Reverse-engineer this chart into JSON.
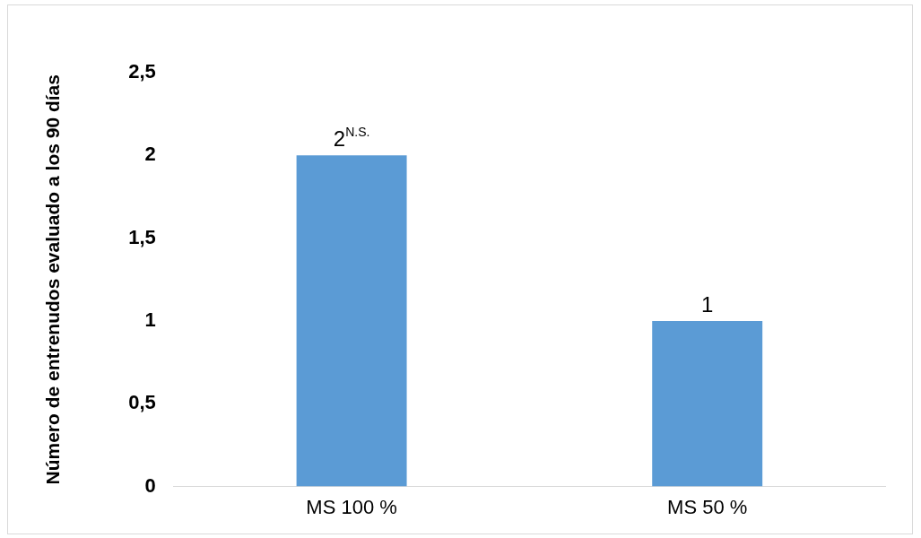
{
  "chart_data": {
    "type": "bar",
    "ylabel": "Número de entrenudos evaluado a los 90 días",
    "categories": [
      "MS 100 %",
      "MS 50 %"
    ],
    "values": [
      2,
      1
    ],
    "color": "#5b9bd5",
    "value_labels": [
      "2$^{N.S.}$",
      "1"
    ],
    "ylim": [
      0,
      2.5
    ],
    "yticks": [
      0,
      {
        "value": 0.5,
        "label": "0,5"
      },
      1,
      {
        "value": 1.5,
        "label": "1,5"
      },
      2,
      {
        "value": 2.5,
        "label": "2,5"
      }
    ],
    "grid": false,
    "legend": false
  }
}
